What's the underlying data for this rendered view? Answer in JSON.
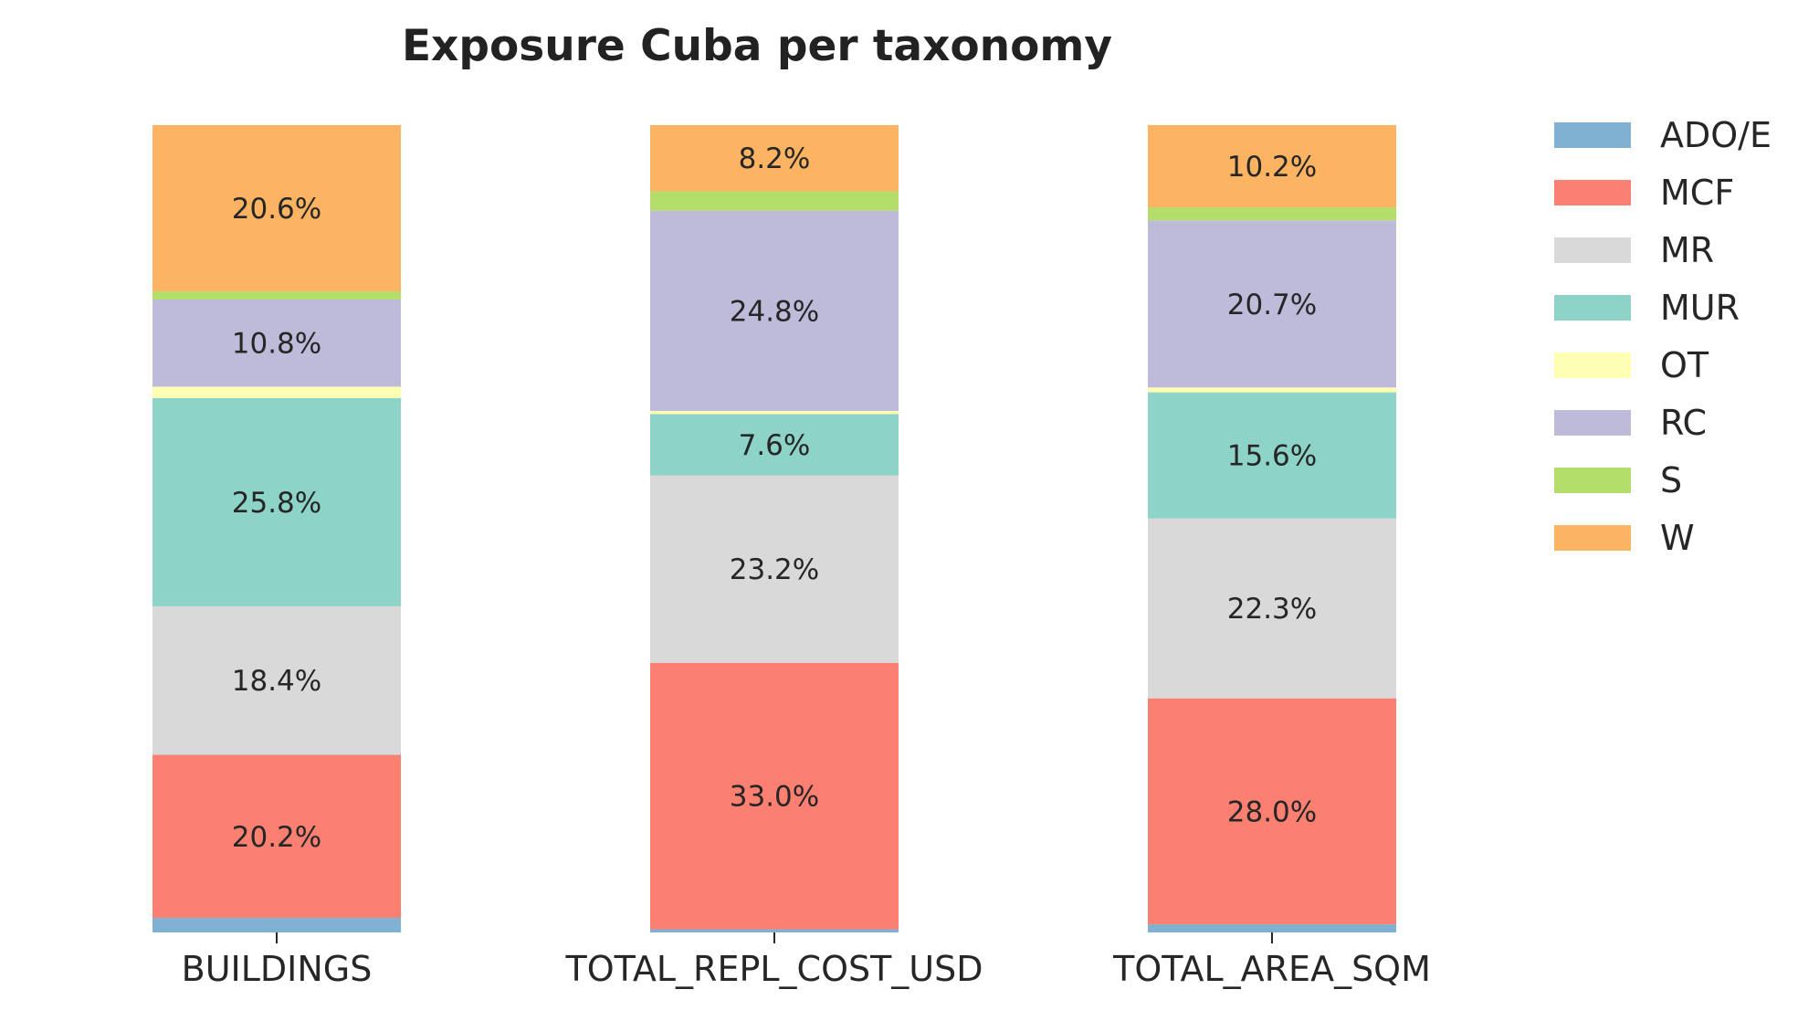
{
  "chart_data": {
    "type": "bar",
    "stacked": true,
    "normalized": true,
    "title": "Exposure Cuba per taxonomy",
    "xlabel": "",
    "ylabel": "",
    "ylim": [
      0,
      100
    ],
    "grid": false,
    "legend_position": "right",
    "categories": [
      "BUILDINGS",
      "TOTAL_REPL_COST_USD",
      "TOTAL_AREA_SQM"
    ],
    "series": [
      {
        "name": "ADO/E",
        "color": "#80b1d3",
        "values": [
          1.8,
          0.4,
          1.0
        ],
        "labels": [
          "",
          "",
          ""
        ]
      },
      {
        "name": "MCF",
        "color": "#fb8072",
        "values": [
          20.2,
          33.0,
          28.0
        ],
        "labels": [
          "20.2%",
          "33.0%",
          "28.0%"
        ]
      },
      {
        "name": "MR",
        "color": "#d9d9d9",
        "values": [
          18.4,
          23.2,
          22.3
        ],
        "labels": [
          "18.4%",
          "23.2%",
          "22.3%"
        ]
      },
      {
        "name": "MUR",
        "color": "#8dd3c7",
        "values": [
          25.8,
          7.6,
          15.6
        ],
        "labels": [
          "25.8%",
          "7.6%",
          "15.6%"
        ]
      },
      {
        "name": "OT",
        "color": "#ffffb3",
        "values": [
          1.4,
          0.4,
          0.6
        ],
        "labels": [
          "",
          "",
          ""
        ]
      },
      {
        "name": "RC",
        "color": "#bebada",
        "values": [
          10.8,
          24.8,
          20.7
        ],
        "labels": [
          "10.8%",
          "24.8%",
          "20.7%"
        ]
      },
      {
        "name": "S",
        "color": "#b3de69",
        "values": [
          1.0,
          2.4,
          1.6
        ],
        "labels": [
          "",
          "",
          ""
        ]
      },
      {
        "name": "W",
        "color": "#fdb462",
        "values": [
          20.6,
          8.2,
          10.2
        ],
        "labels": [
          "20.6%",
          "8.2%",
          "10.2%"
        ]
      }
    ]
  }
}
